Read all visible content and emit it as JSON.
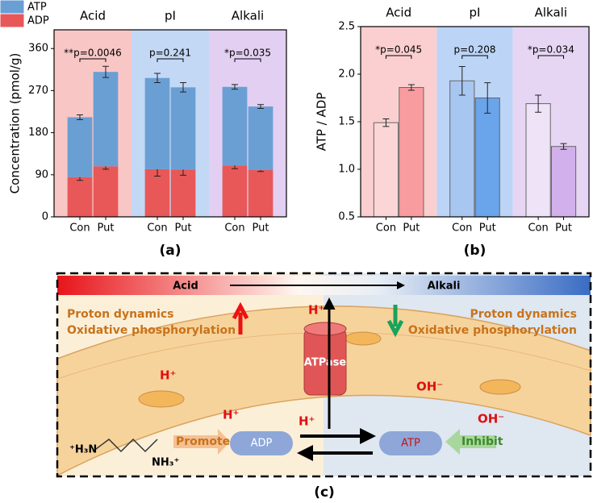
{
  "chart_data": [
    {
      "type": "bar",
      "stacked": true,
      "panel": "(a)",
      "ylabel": "Concentration (pmol/g)",
      "categories": [
        "Con",
        "Put",
        "Con",
        "Put",
        "Con",
        "Put"
      ],
      "groups": [
        {
          "label": "Acid",
          "color": "#f9c6c6"
        },
        {
          "label": "pI",
          "color": "#c3d8f5"
        },
        {
          "label": "Alkali",
          "color": "#e2cff2"
        }
      ],
      "series": [
        {
          "name": "ADP",
          "color": "#e85858",
          "values": [
            85,
            108,
            102,
            101,
            110,
            100
          ],
          "errors": [
            7,
            6,
            15,
            12,
            7,
            3
          ]
        },
        {
          "name": "ATP",
          "color": "#6a9fd4",
          "values": [
            128,
            202,
            195,
            176,
            168,
            136
          ],
          "errors": [
            5,
            12,
            10,
            10,
            5,
            4
          ]
        }
      ],
      "significance": [
        "**p=0.0046",
        "p=0.241",
        "*p=0.035"
      ],
      "ylim": [
        0,
        400
      ],
      "yticks": [
        0,
        90,
        180,
        270,
        360
      ],
      "legend": "upper-left"
    },
    {
      "type": "bar",
      "panel": "(b)",
      "ylabel": "ATP / ADP",
      "categories": [
        "Con",
        "Put",
        "Con",
        "Put",
        "Con",
        "Put"
      ],
      "groups": [
        {
          "label": "Acid",
          "color": "#fbcfcf"
        },
        {
          "label": "pI",
          "color": "#bcd4f6"
        },
        {
          "label": "Alkali",
          "color": "#e6d6f4"
        }
      ],
      "values": [
        1.49,
        1.86,
        1.93,
        1.75,
        1.69,
        1.24
      ],
      "errors": [
        0.04,
        0.03,
        0.15,
        0.16,
        0.09,
        0.03
      ],
      "colors": [
        "#fcd6d6",
        "#f99ca0",
        "#a8c7f0",
        "#6aa4ea",
        "#efe3f7",
        "#d1b0ec"
      ],
      "edgecolor": "#666666",
      "significance": [
        "*p=0.045",
        "p=0.208",
        "*p=0.034"
      ],
      "ylim": [
        0.5,
        2.5
      ],
      "yticks": [
        0.5,
        {
          "value": 1,
          "label": "1.0"
        },
        1.5,
        {
          "value": 2,
          "label": "2.0"
        },
        2.5
      ]
    }
  ],
  "diagram": {
    "panel": "(c)",
    "gradient_left": "Acid",
    "gradient_right": "Alkali",
    "left_text": [
      "Proton dynamics",
      "Oxidative phosphorylation"
    ],
    "right_text": [
      "Proton dynamics",
      "Oxidative phosphorylation"
    ],
    "h_labels": [
      "H⁺",
      "H⁺",
      "H⁺",
      "H⁺"
    ],
    "oh_labels": [
      "OH⁻",
      "OH⁻"
    ],
    "atpase": "ATPase",
    "adp": "ADP",
    "atp": "ATP",
    "promote": "Promote",
    "inhibit": "Inhibit",
    "putrescine": [
      "⁺H₃N",
      "NH₃⁺"
    ]
  }
}
